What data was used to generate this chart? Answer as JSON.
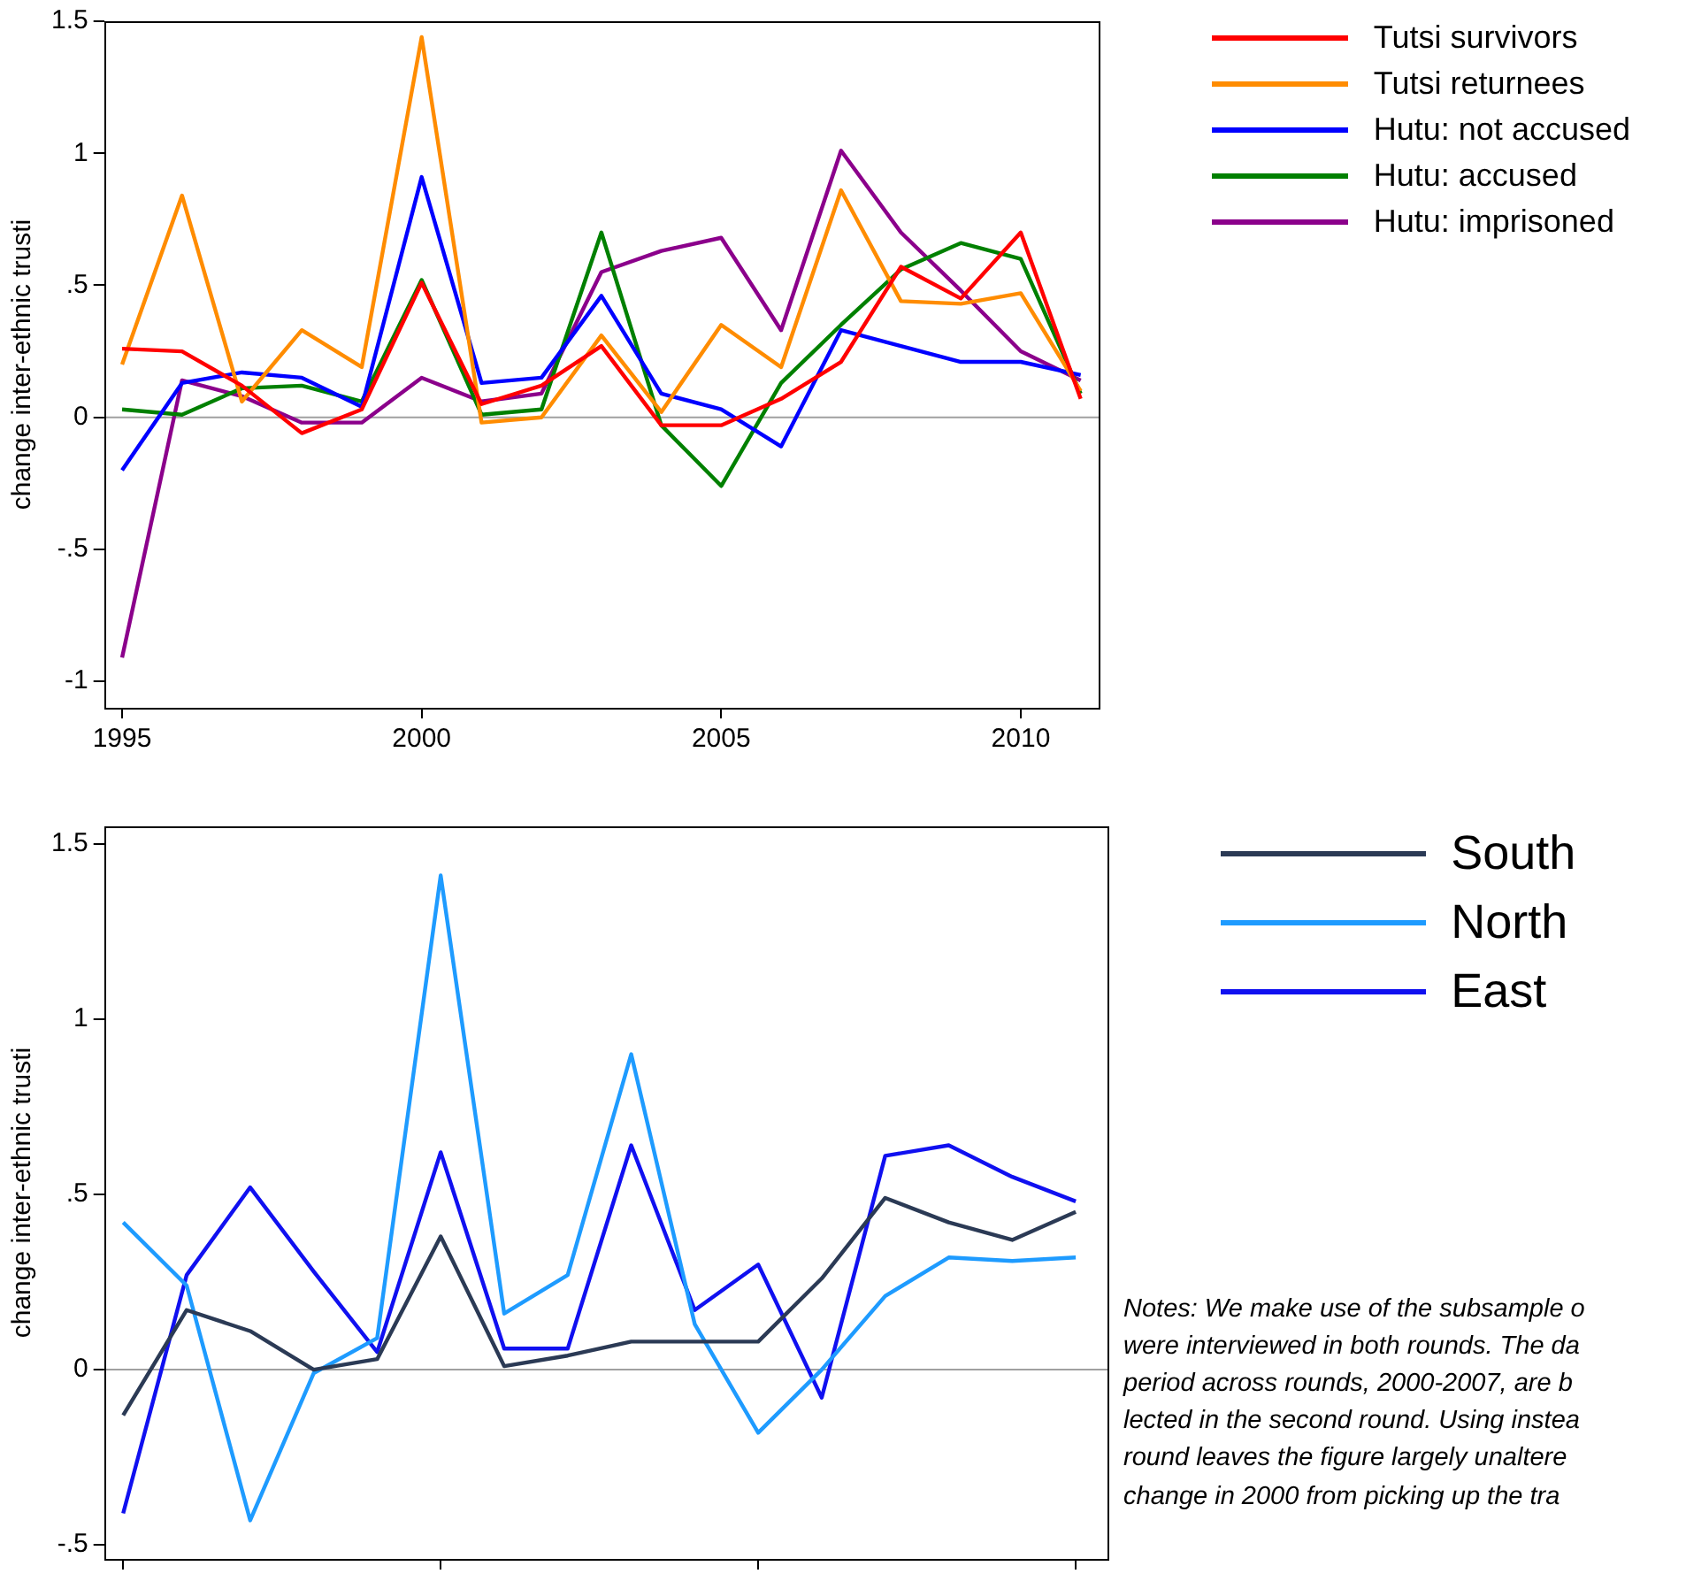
{
  "chart_data": [
    {
      "type": "line",
      "ylabel": "change inter-ethnic trusti",
      "x": [
        1995,
        1996,
        1997,
        1998,
        1999,
        2000,
        2001,
        2002,
        2003,
        2004,
        2005,
        2006,
        2007,
        2008,
        2009,
        2010,
        2011
      ],
      "xlim": [
        1994.7,
        2011.3
      ],
      "xticks": [
        1995,
        2000,
        2005,
        2010
      ],
      "ylim": [
        -1.1,
        1.5
      ],
      "yticks": [
        {
          "value": -1,
          "label": "-1"
        },
        {
          "value": -0.5,
          "label": "-.5"
        },
        0,
        {
          "value": 0.5,
          "label": ".5"
        },
        1,
        1.5
      ],
      "legend": "right",
      "ref_lines": [
        {
          "axis": "y",
          "value": 0,
          "color": "#a0a0a0"
        }
      ],
      "series": [
        {
          "name": "Tutsi survivors",
          "color": "#ff0000",
          "values": [
            0.26,
            0.25,
            0.12,
            -0.06,
            0.03,
            0.51,
            0.05,
            0.12,
            0.27,
            -0.03,
            -0.03,
            0.07,
            0.21,
            0.57,
            0.45,
            0.7,
            0.07
          ]
        },
        {
          "name": "Tutsi returnees",
          "color": "#ff8c00",
          "values": [
            0.2,
            0.84,
            0.06,
            0.33,
            0.19,
            1.44,
            -0.02,
            0,
            0.31,
            0.02,
            0.35,
            0.19,
            0.86,
            0.44,
            0.43,
            0.47,
            0.1
          ]
        },
        {
          "name": "Hutu: not accused",
          "color": "#0000ff",
          "values": [
            -0.2,
            0.13,
            0.17,
            0.15,
            0.04,
            0.91,
            0.13,
            0.15,
            0.46,
            0.09,
            0.03,
            -0.11,
            0.33,
            0.27,
            0.21,
            0.21,
            0.16
          ]
        },
        {
          "name": "Hutu: accused",
          "color": "#008000",
          "values": [
            0.03,
            0.01,
            0.11,
            0.12,
            0.06,
            0.52,
            0.01,
            0.03,
            0.7,
            -0.03,
            -0.26,
            0.13,
            0.35,
            0.56,
            0.66,
            0.6,
            0.09
          ]
        },
        {
          "name": "Hutu: imprisoned",
          "color": "#8b008b",
          "values": [
            -0.91,
            0.14,
            0.08,
            -0.02,
            -0.02,
            0.15,
            0.06,
            0.09,
            0.55,
            0.63,
            0.68,
            0.33,
            1.01,
            0.7,
            0.48,
            0.25,
            0.14
          ]
        }
      ]
    },
    {
      "type": "line",
      "ylabel": "change inter-ethnic trusti",
      "categories": [
        null,
        null,
        null,
        null,
        null,
        null,
        null,
        null,
        null,
        null,
        null,
        null,
        null,
        null,
        null,
        null
      ],
      "ylim": [
        -0.54,
        1.55
      ],
      "yticks": [
        {
          "value": -0.5,
          "label": "-.5"
        },
        0,
        {
          "value": 0.5,
          "label": ".5"
        },
        1,
        1.5
      ],
      "tick_labels": "y",
      "legend": "right",
      "ref_lines": [
        {
          "axis": "y",
          "value": 0,
          "color": "#a0a0a0"
        }
      ],
      "annotations": [
        "Notes: We make use of the subsample o",
        "were interviewed in both rounds. The da",
        "period across rounds, 2000-2007, are b",
        "lected in the second round. Using instea",
        "round leaves the figure largely unaltere",
        "change in 2000 from picking up the tra"
      ],
      "series": [
        {
          "name": "South",
          "color": "#2b3a55",
          "values": [
            -0.13,
            0.17,
            0.11,
            0,
            0.03,
            0.38,
            0.01,
            0.04,
            0.08,
            0.08,
            0.08,
            0.26,
            0.49,
            0.42,
            0.37,
            0.45
          ]
        },
        {
          "name": "North",
          "color": "#1e9bff",
          "values": [
            0.42,
            0.24,
            -0.43,
            -0.01,
            0.09,
            1.41,
            0.16,
            0.27,
            0.9,
            0.13,
            -0.18,
            0,
            0.21,
            0.32,
            0.31,
            0.32
          ]
        },
        {
          "name": "East",
          "color": "#1010f0",
          "values": [
            -0.41,
            0.27,
            0.52,
            0.28,
            0.05,
            0.62,
            0.06,
            0.06,
            0.64,
            0.17,
            0.3,
            -0.08,
            0.61,
            0.64,
            0.55,
            0.48
          ]
        }
      ]
    }
  ]
}
